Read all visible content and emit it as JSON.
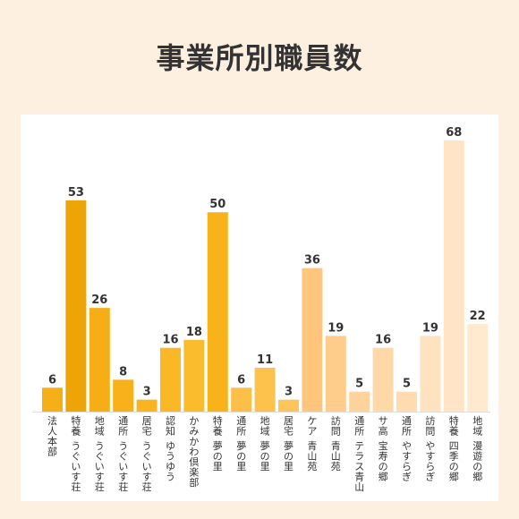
{
  "title": "事業所別職員数",
  "chart_data": {
    "type": "bar",
    "title": "事業所別職員数",
    "categories": [
      "法人本部",
      "特養 うぐいす荘",
      "地域 うぐいす荘",
      "通所 うぐいす荘",
      "居宅 うぐいす荘",
      "認知 ゆうゆう",
      "かみかわ倶楽部",
      "特養 夢の里",
      "通所 夢の里",
      "地域 夢の里",
      "居宅 夢の里",
      "ケア 青山苑",
      "訪問 青山苑",
      "通所 テラス青山",
      "サ高 宝寿の郷",
      "通所 やすらぎ",
      "訪問 やすらぎ",
      "特養 四季の郷",
      "地域 漫遊の郷"
    ],
    "values": [
      6,
      53,
      26,
      8,
      3,
      16,
      18,
      50,
      6,
      11,
      3,
      36,
      19,
      5,
      16,
      5,
      19,
      68,
      22
    ],
    "colors": [
      "#f6b017",
      "#eda406",
      "#f7ad15",
      "#f8b11b",
      "#f9b420",
      "#fab826",
      "#fbbc2b",
      "#f9b31a",
      "#fcc04a",
      "#fcc24c",
      "#fdc55a",
      "#fdc67c",
      "#fecd8b",
      "#fed39c",
      "#fed8a7",
      "#ffdcb0",
      "#ffe2bf",
      "#ffe5c5",
      "#ffe9cf"
    ],
    "ylim": [
      0,
      68
    ],
    "xlabel": "",
    "ylabel": "",
    "grid": false,
    "legend": "none"
  }
}
